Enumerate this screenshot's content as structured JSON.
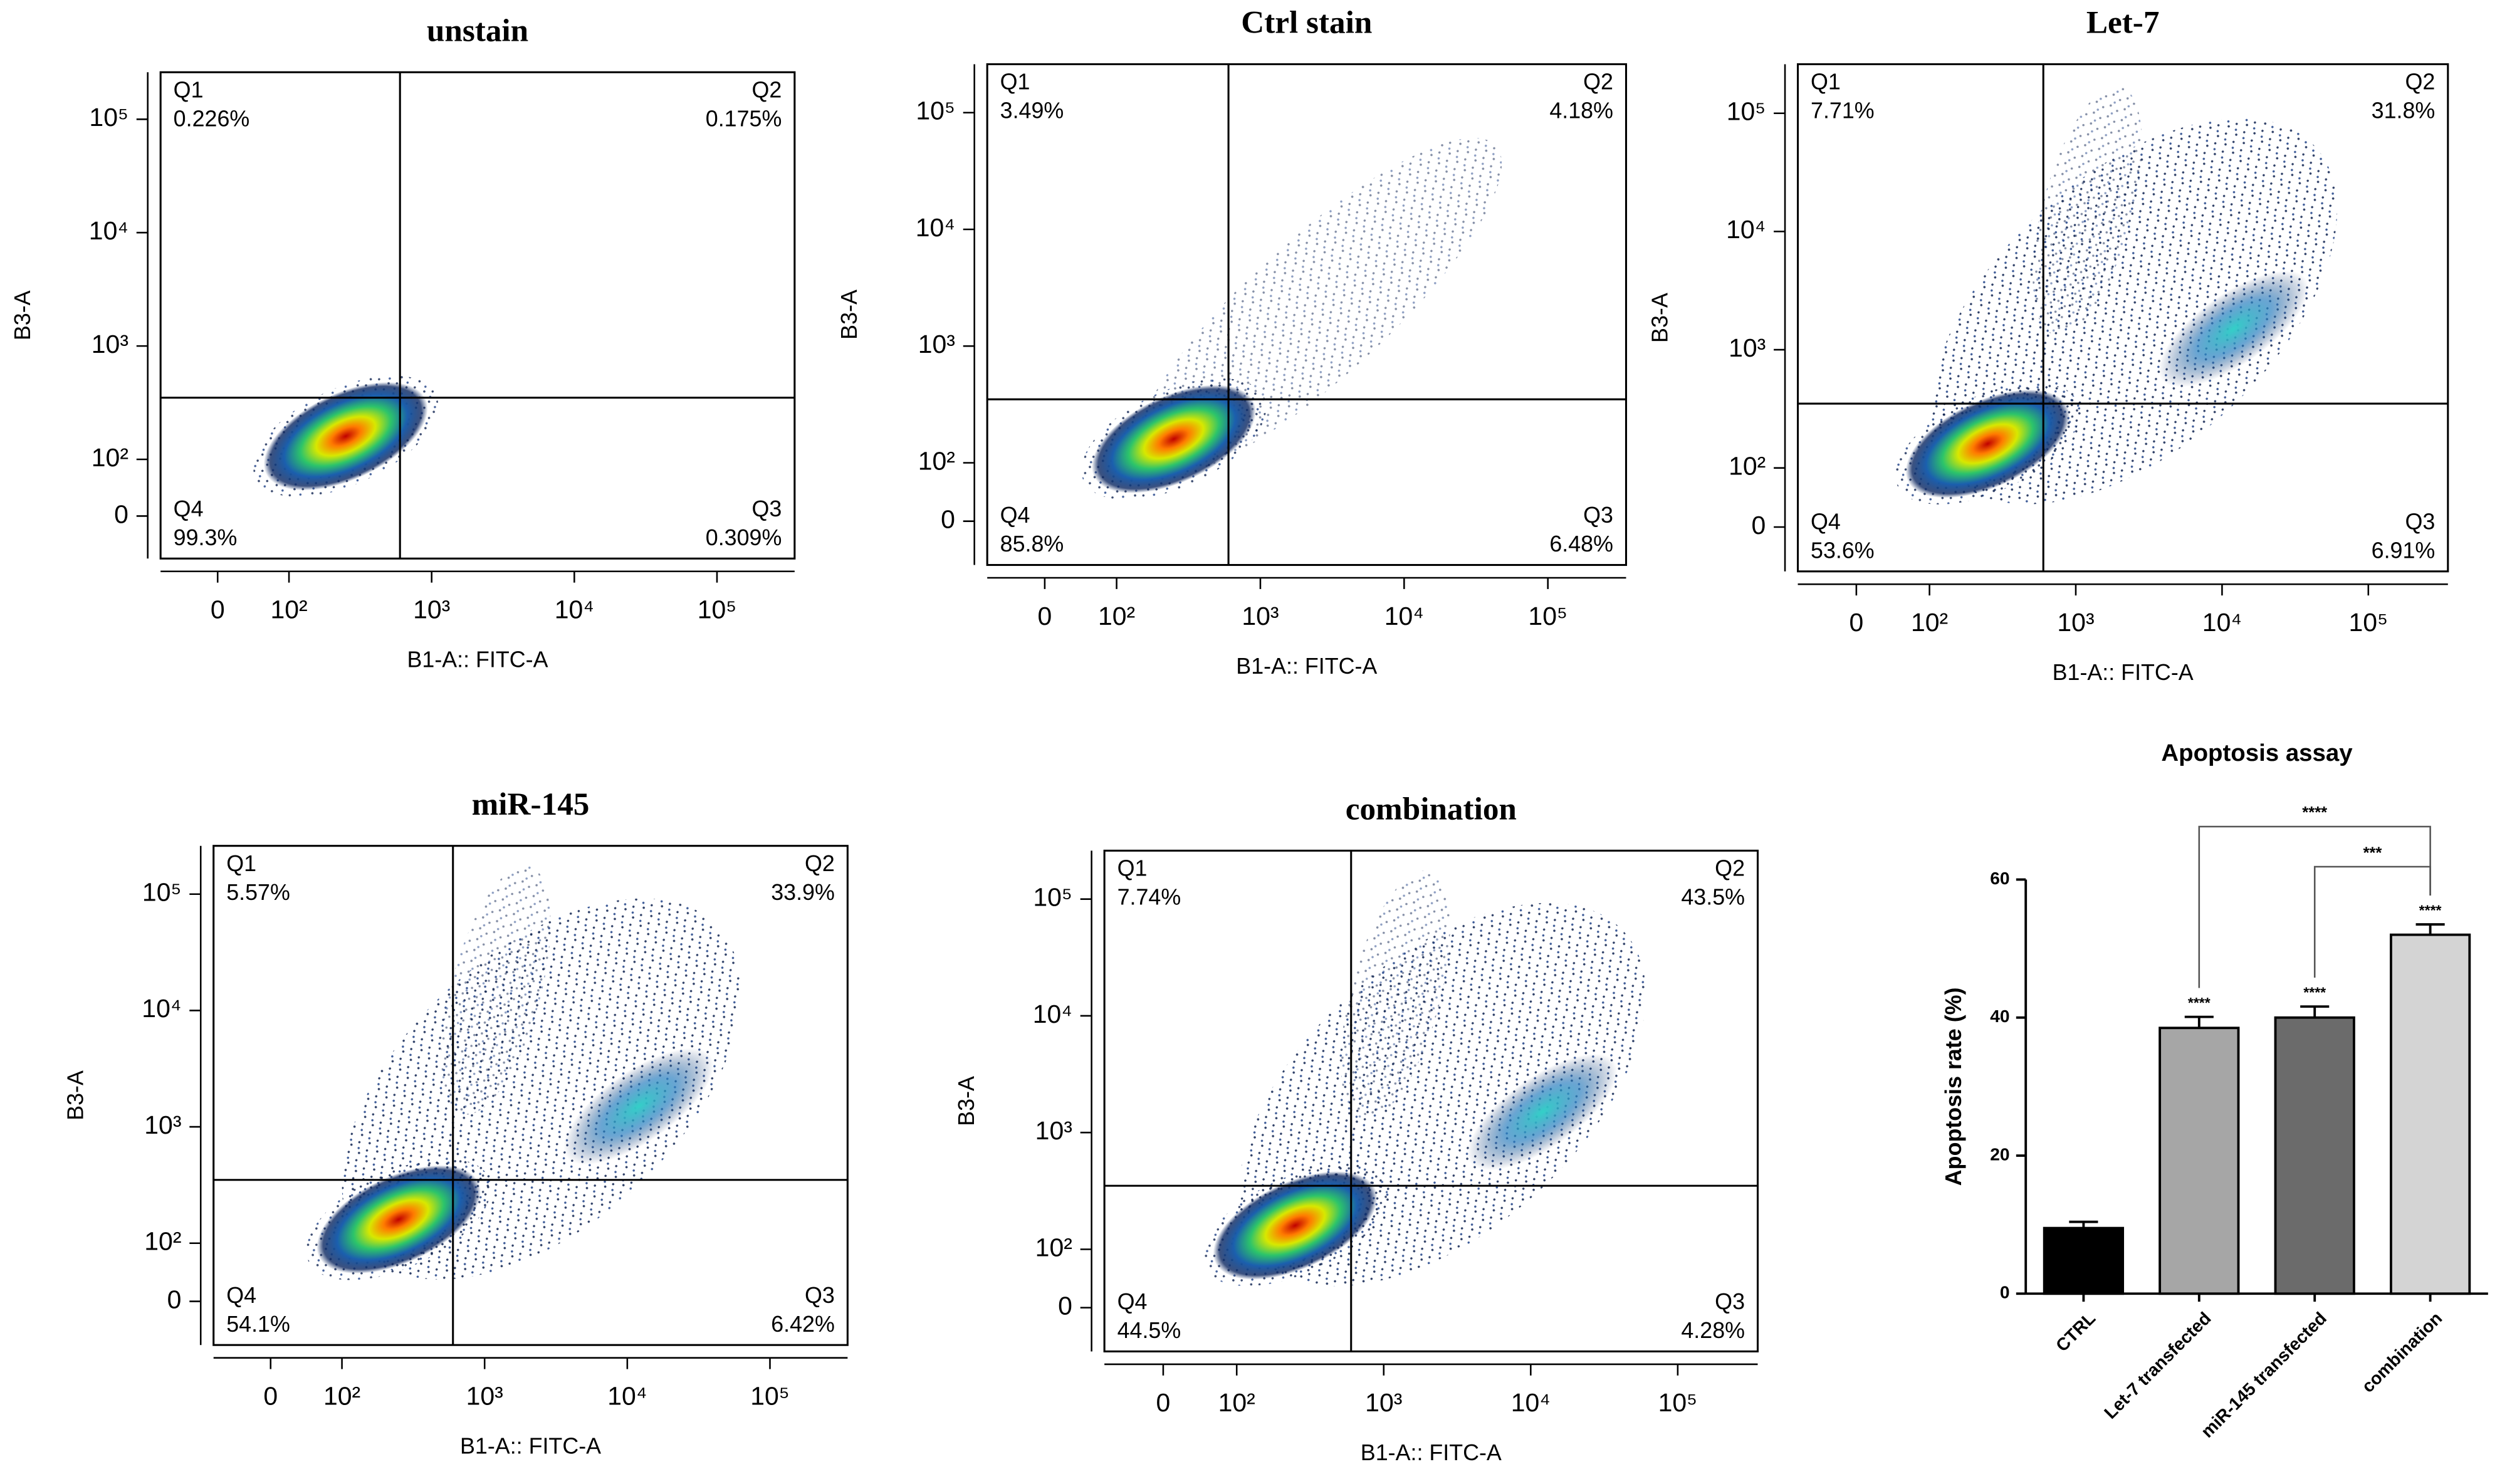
{
  "chart_data": [
    {
      "type": "flow",
      "title": "unstain",
      "xlabel": "B1-A:: FITC-A",
      "ylabel": "B3-A",
      "scale": "biexponential",
      "xlim": [
        -80,
        350000
      ],
      "ylim": [
        -75,
        260000
      ],
      "xticks": [
        0,
        {
          "value": 100,
          "label": "10²"
        },
        {
          "value": 1000,
          "label": "10³"
        },
        {
          "value": 10000,
          "label": "10⁴"
        },
        {
          "value": 100000,
          "label": "10⁵"
        }
      ],
      "yticks": [
        0,
        {
          "value": 100,
          "label": "10²"
        },
        {
          "value": 1000,
          "label": "10³"
        },
        {
          "value": 10000,
          "label": "10⁴"
        },
        {
          "value": 100000,
          "label": "10⁵"
        }
      ],
      "gate": {
        "x": 600,
        "y": 350
      },
      "quadrants": [
        "Q1",
        "Q2",
        "Q3",
        "Q4"
      ],
      "values": [
        0.226,
        0.175,
        0.309,
        99.3
      ],
      "value_labels": [
        "0.226%",
        "0.175%",
        "0.309%",
        "99.3%"
      ]
    },
    {
      "type": "flow",
      "title": "Ctrl stain",
      "xlabel": "B1-A:: FITC-A",
      "ylabel": "B3-A",
      "scale": "biexponential",
      "xlim": [
        -80,
        350000
      ],
      "ylim": [
        -75,
        260000
      ],
      "xticks": [
        0,
        {
          "value": 100,
          "label": "10²"
        },
        {
          "value": 1000,
          "label": "10³"
        },
        {
          "value": 10000,
          "label": "10⁴"
        },
        {
          "value": 100000,
          "label": "10⁵"
        }
      ],
      "yticks": [
        0,
        {
          "value": 100,
          "label": "10²"
        },
        {
          "value": 1000,
          "label": "10³"
        },
        {
          "value": 10000,
          "label": "10⁴"
        },
        {
          "value": 100000,
          "label": "10⁵"
        }
      ],
      "gate": {
        "x": 600,
        "y": 350
      },
      "quadrants": [
        "Q1",
        "Q2",
        "Q3",
        "Q4"
      ],
      "values": [
        3.49,
        4.18,
        6.48,
        85.8
      ],
      "value_labels": [
        "3.49%",
        "4.18%",
        "6.48%",
        "85.8%"
      ]
    },
    {
      "type": "flow",
      "title": "Let-7",
      "xlabel": "B1-A:: FITC-A",
      "ylabel": "B3-A",
      "scale": "biexponential",
      "xlim": [
        -80,
        350000
      ],
      "ylim": [
        -75,
        260000
      ],
      "xticks": [
        0,
        {
          "value": 100,
          "label": "10²"
        },
        {
          "value": 1000,
          "label": "10³"
        },
        {
          "value": 10000,
          "label": "10⁴"
        },
        {
          "value": 100000,
          "label": "10⁵"
        }
      ],
      "yticks": [
        0,
        {
          "value": 100,
          "label": "10²"
        },
        {
          "value": 1000,
          "label": "10³"
        },
        {
          "value": 10000,
          "label": "10⁴"
        },
        {
          "value": 100000,
          "label": "10⁵"
        }
      ],
      "gate": {
        "x": 600,
        "y": 350
      },
      "quadrants": [
        "Q1",
        "Q2",
        "Q3",
        "Q4"
      ],
      "values": [
        7.71,
        31.8,
        6.91,
        53.6
      ],
      "value_labels": [
        "7.71%",
        "31.8%",
        "6.91%",
        "53.6%"
      ]
    },
    {
      "type": "flow",
      "title": "miR-145",
      "xlabel": "B1-A:: FITC-A",
      "ylabel": "B3-A",
      "scale": "biexponential",
      "xlim": [
        -80,
        350000
      ],
      "ylim": [
        -75,
        260000
      ],
      "xticks": [
        0,
        {
          "value": 100,
          "label": "10²"
        },
        {
          "value": 1000,
          "label": "10³"
        },
        {
          "value": 10000,
          "label": "10⁴"
        },
        {
          "value": 100000,
          "label": "10⁵"
        }
      ],
      "yticks": [
        0,
        {
          "value": 100,
          "label": "10²"
        },
        {
          "value": 1000,
          "label": "10³"
        },
        {
          "value": 10000,
          "label": "10⁴"
        },
        {
          "value": 100000,
          "label": "10⁵"
        }
      ],
      "gate": {
        "x": 600,
        "y": 350
      },
      "quadrants": [
        "Q1",
        "Q2",
        "Q3",
        "Q4"
      ],
      "values": [
        5.57,
        33.9,
        6.42,
        54.1
      ],
      "value_labels": [
        "5.57%",
        "33.9%",
        "6.42%",
        "54.1%"
      ]
    },
    {
      "type": "flow",
      "title": "combination",
      "xlabel": "B1-A:: FITC-A",
      "ylabel": "B3-A",
      "scale": "biexponential",
      "xlim": [
        -80,
        350000
      ],
      "ylim": [
        -75,
        260000
      ],
      "xticks": [
        0,
        {
          "value": 100,
          "label": "10²"
        },
        {
          "value": 1000,
          "label": "10³"
        },
        {
          "value": 10000,
          "label": "10⁴"
        },
        {
          "value": 100000,
          "label": "10⁵"
        }
      ],
      "yticks": [
        0,
        {
          "value": 100,
          "label": "10²"
        },
        {
          "value": 1000,
          "label": "10³"
        },
        {
          "value": 10000,
          "label": "10⁴"
        },
        {
          "value": 100000,
          "label": "10⁵"
        }
      ],
      "gate": {
        "x": 600,
        "y": 350
      },
      "quadrants": [
        "Q1",
        "Q2",
        "Q3",
        "Q4"
      ],
      "values": [
        7.74,
        43.5,
        4.28,
        44.5
      ],
      "value_labels": [
        "7.74%",
        "43.5%",
        "4.28%",
        "44.5%"
      ]
    },
    {
      "type": "bar",
      "title": "Apoptosis assay",
      "ylabel": "Apoptosis rate (%)",
      "categories": [
        "CTRL",
        "Let-7 transfected",
        "miR-145 transfected",
        "combination"
      ],
      "values": [
        9.5,
        38.5,
        40,
        52
      ],
      "errors": [
        0.9,
        1.6,
        1.6,
        1.5
      ],
      "colors": [
        "#000000",
        "#a6a6a6",
        "#6b6b6b",
        "#d4d4d4"
      ],
      "ylim": [
        0,
        60
      ],
      "yticks": [
        0,
        20,
        40,
        60
      ],
      "significance": [
        {
          "index": 1,
          "label": "****"
        },
        {
          "index": 2,
          "label": "****"
        },
        {
          "index": 3,
          "label": "****"
        }
      ],
      "brackets": [
        {
          "from": 1,
          "to": 3,
          "label": "****"
        },
        {
          "from": 2,
          "to": 3,
          "label": "***"
        }
      ]
    }
  ]
}
